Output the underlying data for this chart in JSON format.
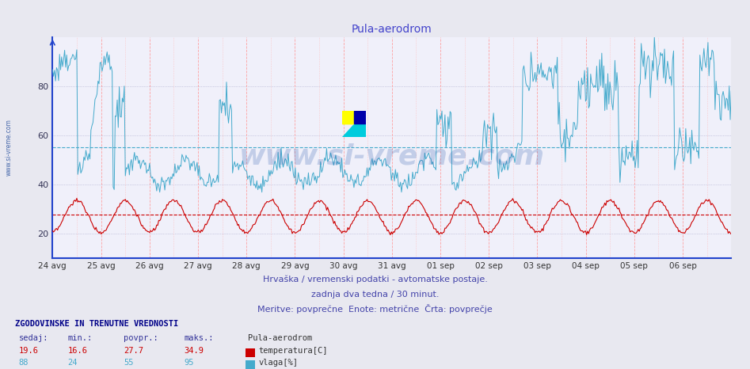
{
  "title": "Pula-aerodrom",
  "title_color": "#4444cc",
  "bg_color": "#e8e8f0",
  "plot_bg_color": "#f0f0fa",
  "grid_h_color": "#aaaacc",
  "grid_v_color": "#ffaaaa",
  "xlabel_dates": [
    "24 avg",
    "25 avg",
    "26 avg",
    "27 avg",
    "28 avg",
    "29 avg",
    "30 avg",
    "31 avg",
    "01 sep",
    "02 sep",
    "03 sep",
    "04 sep",
    "05 sep",
    "06 sep"
  ],
  "ylim": [
    10,
    100
  ],
  "yticks": [
    20,
    40,
    60,
    80
  ],
  "temp_color": "#cc0000",
  "hum_color": "#44aacc",
  "temp_avg": 27.7,
  "hum_avg": 55,
  "watermark": "www.si-vreme.com",
  "watermark_color": "#2255aa",
  "footer_line1": "Hrvaška / vremenski podatki - avtomatske postaje.",
  "footer_line2": "zadnja dva tedna / 30 minut.",
  "footer_line3": "Meritve: povprečne  Enote: metrične  Črta: povprečje",
  "footer_color": "#4444aa",
  "left_label": "www.si-vreme.com",
  "left_label_color": "#4466aa",
  "spine_color": "#2244cc",
  "stats_header": "ZGODOVINSKE IN TRENUTNE VREDNOSTI",
  "stats_cols": [
    "sedaj:",
    "min.:",
    "povpr.:",
    "maks.:"
  ],
  "stats_temp": [
    19.6,
    16.6,
    27.7,
    34.9
  ],
  "stats_hum": [
    88,
    24,
    55,
    95
  ],
  "legend_station": "Pula-aerodrom",
  "legend_temp": "temperatura[C]",
  "legend_hum": "vlaga[%]"
}
